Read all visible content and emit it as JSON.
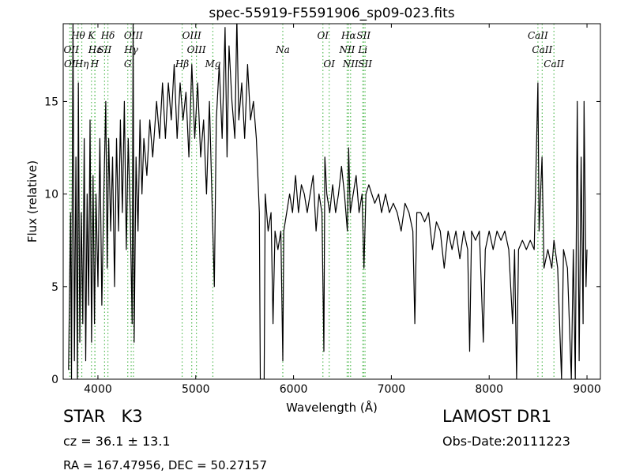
{
  "chart_data": {
    "type": "line",
    "title": "spec-55919-F5591906_sp09-023.fits",
    "x_label": "Wavelength (Å)",
    "y_label": "Flux (relative)",
    "x": [
      3700,
      3720,
      3730,
      3745,
      3760,
      3775,
      3790,
      3800,
      3815,
      3830,
      3845,
      3860,
      3875,
      3890,
      3905,
      3920,
      3935,
      3950,
      3965,
      3980,
      4000,
      4020,
      4040,
      4060,
      4080,
      4095,
      4110,
      4130,
      4150,
      4170,
      4190,
      4210,
      4230,
      4250,
      4270,
      4290,
      4310,
      4330,
      4350,
      4360,
      4370,
      4390,
      4410,
      4430,
      4450,
      4470,
      4500,
      4530,
      4560,
      4600,
      4630,
      4660,
      4690,
      4720,
      4750,
      4780,
      4810,
      4840,
      4870,
      4900,
      4930,
      4960,
      4990,
      5020,
      5050,
      5080,
      5110,
      5140,
      5170,
      5190,
      5210,
      5240,
      5270,
      5300,
      5320,
      5340,
      5370,
      5400,
      5420,
      5440,
      5470,
      5500,
      5530,
      5560,
      5590,
      5620,
      5650,
      5660,
      5700,
      5710,
      5740,
      5770,
      5790,
      5810,
      5840,
      5870,
      5890,
      5900,
      5930,
      5960,
      5990,
      6020,
      6050,
      6080,
      6110,
      6140,
      6170,
      6200,
      6230,
      6260,
      6290,
      6310,
      6320,
      6340,
      6370,
      6400,
      6430,
      6460,
      6490,
      6520,
      6550,
      6563,
      6580,
      6610,
      6640,
      6670,
      6700,
      6720,
      6740,
      6770,
      6800,
      6830,
      6870,
      6900,
      6940,
      6980,
      7020,
      7060,
      7100,
      7140,
      7180,
      7220,
      7240,
      7260,
      7300,
      7340,
      7380,
      7420,
      7460,
      7500,
      7540,
      7580,
      7620,
      7660,
      7700,
      7740,
      7780,
      7800,
      7820,
      7860,
      7900,
      7940,
      7960,
      8000,
      8040,
      8080,
      8120,
      8160,
      8200,
      8240,
      8260,
      8280,
      8300,
      8340,
      8380,
      8420,
      8460,
      8498,
      8510,
      8540,
      8560,
      8600,
      8640,
      8662,
      8700,
      8740,
      8760,
      8800,
      8840,
      8860,
      8880,
      8900,
      8920,
      8940,
      8960,
      8970,
      8990,
      9000
    ],
    "values": [
      0.5,
      9,
      0,
      19.5,
      1,
      12,
      0,
      16,
      2,
      9,
      3,
      13,
      1,
      10,
      4,
      14,
      2,
      11,
      3,
      10,
      5,
      13,
      4,
      10,
      15,
      6,
      13,
      8,
      12,
      5,
      13,
      8,
      14,
      9,
      15,
      7,
      13,
      9,
      3,
      19.5,
      2,
      12,
      8,
      14,
      10,
      13,
      11,
      14,
      12,
      15,
      13,
      16,
      13,
      16,
      14,
      17,
      13,
      16,
      14,
      15.5,
      12,
      17,
      13,
      16,
      12,
      14,
      10,
      15,
      9,
      5,
      14,
      17,
      13,
      19,
      12,
      18,
      15,
      13,
      19.5,
      14,
      16,
      13,
      17,
      14,
      15,
      13,
      9,
      0,
      0,
      10,
      8,
      9,
      3,
      8,
      7,
      8,
      1,
      8,
      9,
      10,
      9,
      11,
      9,
      10.5,
      10,
      9,
      10,
      11,
      8,
      10,
      9,
      1.5,
      12,
      10,
      9,
      10.5,
      9,
      10,
      11.5,
      10,
      8,
      12.5,
      9,
      10,
      11,
      9,
      10,
      6,
      10,
      10.5,
      10,
      9.5,
      10,
      9,
      10,
      9,
      9.5,
      9,
      8,
      9.5,
      9,
      8,
      3,
      9,
      9,
      8.5,
      9,
      7,
      8.5,
      8,
      6,
      8,
      7,
      8,
      6.5,
      8,
      7,
      1.5,
      8,
      7.5,
      8,
      2,
      7,
      8,
      7,
      8,
      7.5,
      8,
      7,
      3,
      7,
      0,
      7,
      7.5,
      7,
      7.5,
      7,
      16,
      8,
      12,
      6,
      7,
      6,
      7.5,
      6,
      0,
      7,
      6,
      0,
      7,
      0,
      15,
      1,
      12,
      3,
      15,
      5,
      7
    ],
    "color": "#000000",
    "xlim": [
      3645,
      9137
    ],
    "ylim": [
      0,
      19.2
    ],
    "xticks": [
      4000,
      5000,
      6000,
      7000,
      8000,
      9000
    ],
    "yticks": [
      0,
      5,
      10,
      15
    ],
    "line_marker_color": "#55bb55",
    "spectral_lines": [
      [
        {
          "wavelength": 3798,
          "label": "Hθ"
        },
        {
          "wavelength": 3934,
          "label": "K"
        },
        {
          "wavelength": 4102,
          "label": "Hδ"
        },
        {
          "wavelength": 4363,
          "label": "OIII"
        },
        {
          "wavelength": 4959,
          "label": "OIII"
        },
        {
          "wavelength": 6300,
          "label": "OI"
        },
        {
          "wavelength": 6563,
          "label": "Hα"
        },
        {
          "wavelength": 6716,
          "label": "SII"
        },
        {
          "wavelength": 8498,
          "label": "CaII"
        }
      ],
      [
        {
          "wavelength": 3727,
          "label": "OII"
        },
        {
          "wavelength": 3970,
          "label": "Hε"
        },
        {
          "wavelength": 4068,
          "label": "SII"
        },
        {
          "wavelength": 4340,
          "label": "Hγ"
        },
        {
          "wavelength": 5007,
          "label": "OIII"
        },
        {
          "wavelength": 5890,
          "label": "Na"
        },
        {
          "wavelength": 6548,
          "label": "NII"
        },
        {
          "wavelength": 6708,
          "label": "Li"
        },
        {
          "wavelength": 8542,
          "label": "CaII"
        }
      ],
      [
        {
          "wavelength": 3712,
          "label": "OI"
        },
        {
          "wavelength": 3835,
          "label": "Hη"
        },
        {
          "wavelength": 3968,
          "label": "H"
        },
        {
          "wavelength": 4305,
          "label": "G"
        },
        {
          "wavelength": 4861,
          "label": "Hβ"
        },
        {
          "wavelength": 5175,
          "label": "Mg"
        },
        {
          "wavelength": 6364,
          "label": "OI"
        },
        {
          "wavelength": 6583,
          "label": "NII"
        },
        {
          "wavelength": 6731,
          "label": "SII"
        },
        {
          "wavelength": 8662,
          "label": "CaII"
        }
      ]
    ]
  },
  "footer": {
    "object": "STAR   K3",
    "survey": "LAMOST DR1",
    "redshift": "cz = 36.1 ± 13.1",
    "obs_date": "Obs-Date:20111223",
    "coords": "RA = 167.47956, DEC = 50.27157"
  }
}
